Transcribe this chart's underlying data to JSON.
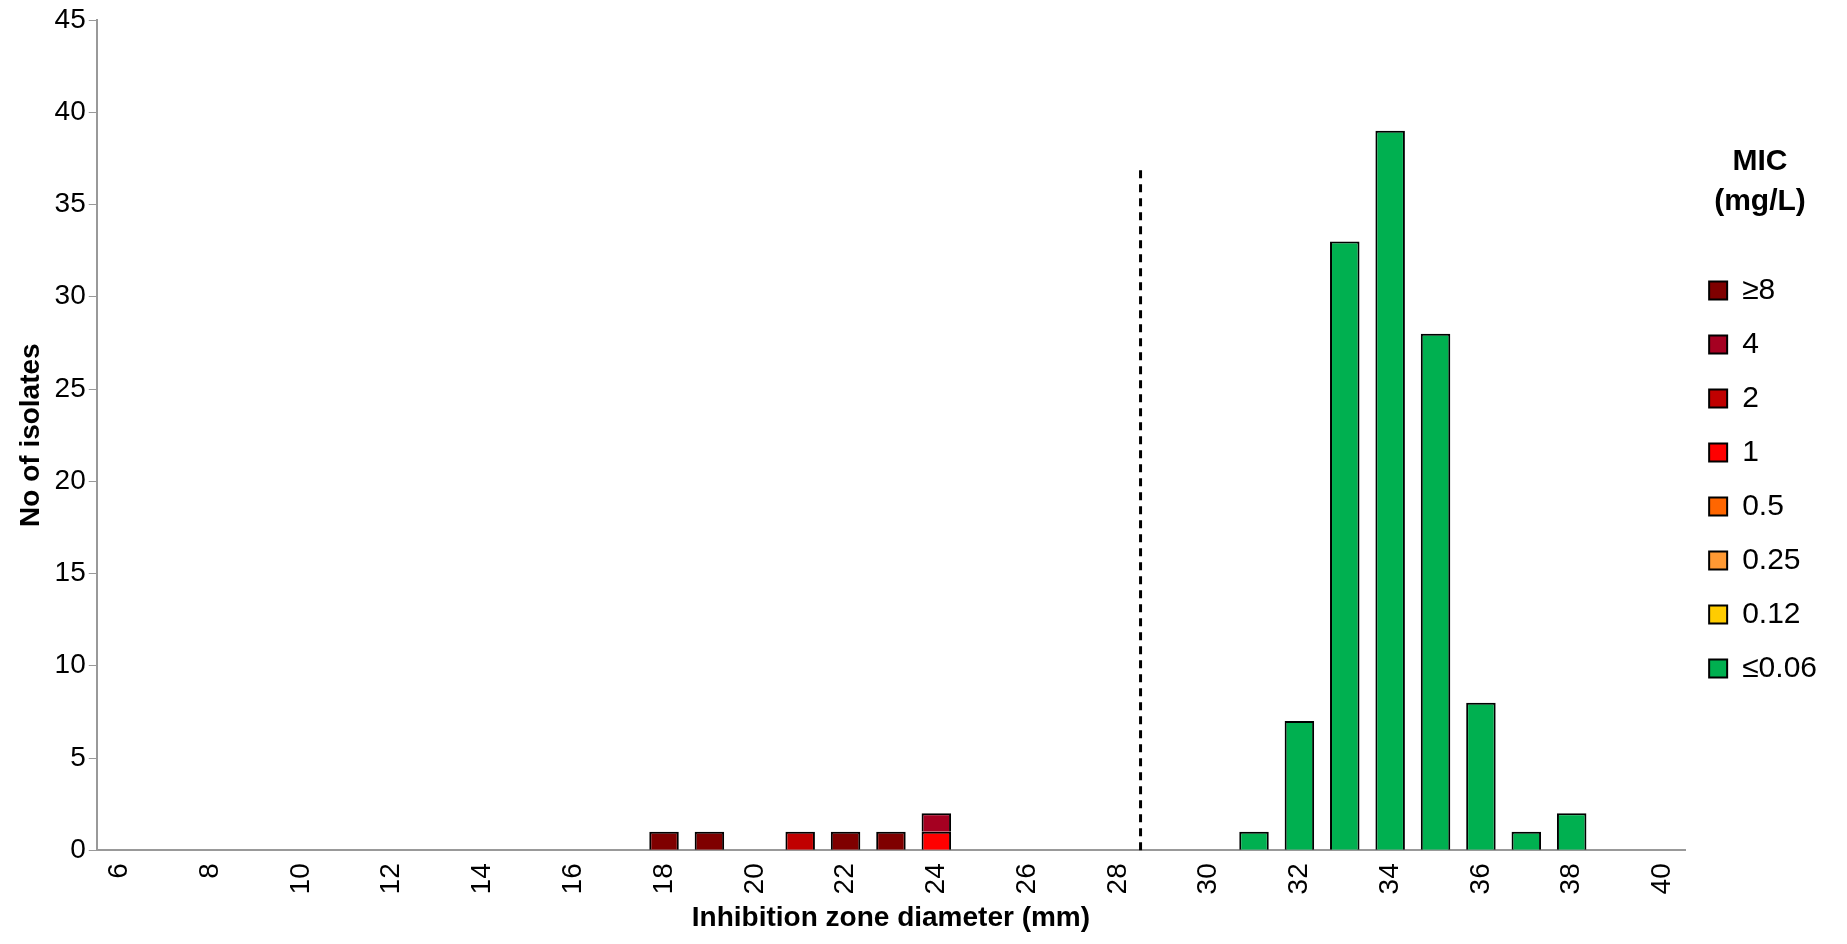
{
  "chart_data": {
    "type": "bar",
    "xlabel": "Inhibition zone diameter (mm)",
    "ylabel": "No of isolates",
    "legend_title": "MIC (mg/L)",
    "legend": "right",
    "stacked": true,
    "grid": false,
    "x": [
      18,
      19,
      21,
      22,
      23,
      24,
      31,
      32,
      33,
      34,
      35,
      36,
      37,
      38
    ],
    "xlim": [
      5.5,
      40.5
    ],
    "xticks": [
      6,
      8,
      10,
      12,
      14,
      16,
      18,
      20,
      22,
      24,
      26,
      28,
      30,
      32,
      34,
      36,
      38,
      40
    ],
    "ylim": [
      0,
      45
    ],
    "yticks": [
      0,
      5,
      10,
      15,
      20,
      25,
      30,
      35,
      40,
      45
    ],
    "series": [
      {
        "name": "≤0.06",
        "color": "#00b050",
        "values": [
          null,
          null,
          null,
          null,
          null,
          null,
          1,
          7,
          33,
          39,
          28,
          8,
          1,
          2
        ]
      },
      {
        "name": "0.12",
        "color": "#ffcc00",
        "values": [
          null,
          null,
          null,
          null,
          null,
          null,
          null,
          null,
          null,
          null,
          null,
          null,
          null,
          null
        ]
      },
      {
        "name": "0.25",
        "color": "#ff9933",
        "values": [
          null,
          null,
          null,
          null,
          null,
          null,
          null,
          null,
          null,
          null,
          null,
          null,
          null,
          null
        ]
      },
      {
        "name": "0.5",
        "color": "#ff6600",
        "values": [
          null,
          null,
          null,
          null,
          null,
          null,
          null,
          null,
          null,
          null,
          null,
          null,
          null,
          null
        ]
      },
      {
        "name": "1",
        "color": "#ff0000",
        "values": [
          null,
          null,
          null,
          null,
          null,
          1,
          null,
          null,
          null,
          null,
          null,
          null,
          null,
          null
        ]
      },
      {
        "name": "2",
        "color": "#c00000",
        "values": [
          null,
          null,
          1,
          null,
          null,
          null,
          null,
          null,
          null,
          null,
          null,
          null,
          null,
          null
        ]
      },
      {
        "name": "4",
        "color": "#a50021",
        "values": [
          null,
          null,
          null,
          null,
          null,
          1,
          null,
          null,
          null,
          null,
          null,
          null,
          null,
          null
        ]
      },
      {
        "name": "≥8",
        "color": "#7f0000",
        "values": [
          1,
          1,
          null,
          1,
          1,
          null,
          null,
          null,
          null,
          null,
          null,
          null,
          null,
          null
        ]
      }
    ],
    "ref_lines": [
      {
        "axis": "x",
        "value": 28.5,
        "color": "#000000",
        "line_style": "dashed"
      }
    ]
  }
}
